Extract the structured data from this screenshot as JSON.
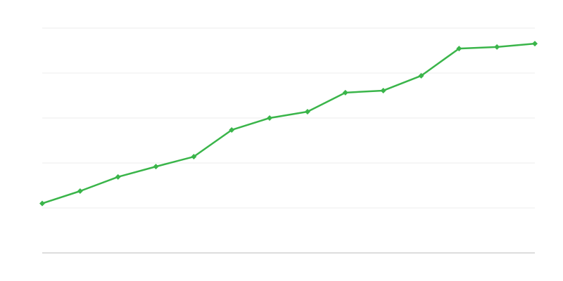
{
  "chart_data": {
    "type": "line",
    "categories": [
      null,
      null,
      null,
      null,
      null,
      null,
      null,
      null,
      null,
      null,
      null,
      null,
      null,
      null
    ],
    "values": [
      22,
      27.5,
      33.8,
      38.4,
      42.8,
      54.7,
      60,
      62.8,
      71.3,
      72.2,
      78.8,
      90.9,
      91.6,
      93.1
    ],
    "color": "#3ab54a",
    "ylim": [
      0,
      100
    ],
    "yticks": [
      0,
      20,
      40,
      60,
      80,
      100
    ],
    "grid": true
  }
}
